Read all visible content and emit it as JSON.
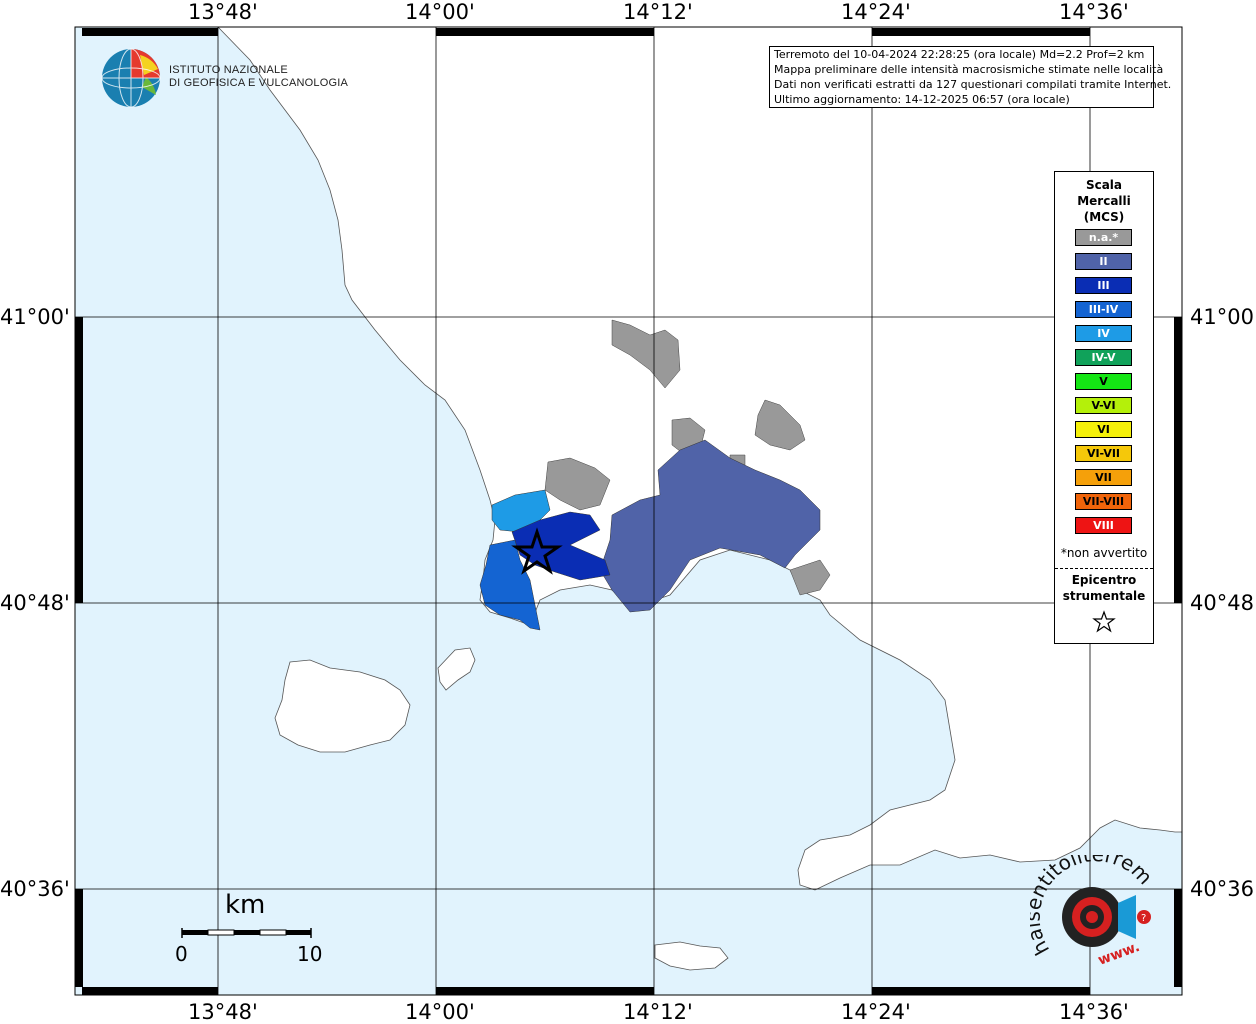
{
  "map": {
    "lon_ticks": [
      "13°48'",
      "14°00'",
      "14°12'",
      "14°24'",
      "14°36'"
    ],
    "lat_ticks": [
      "41°00'",
      "40°48'",
      "40°36'"
    ]
  },
  "logo": {
    "line1": "ISTITUTO NAZIONALE",
    "line2": "DI GEOFISICA E VULCANOLOGIA"
  },
  "info": {
    "line1": "Terremoto del 10-04-2024 22:28:25 (ora locale) Md=2.2 Prof=2 km",
    "line2": "Mappa preliminare delle intensità macrosismiche stimate nelle località",
    "line3": "Dati non verificati estratti da 127 questionari compilati tramite Internet.",
    "line4": "Ultimo aggiornamento: 14-12-2025 06:57 (ora locale)"
  },
  "legend": {
    "title1": "Scala",
    "title2": "Mercalli",
    "title3": "(MCS)",
    "items": [
      {
        "label": "n.a.*",
        "color": "#999999"
      },
      {
        "label": "II",
        "color": "#5063a8"
      },
      {
        "label": "III",
        "color": "#0a2db4"
      },
      {
        "label": "III-IV",
        "color": "#1464d2"
      },
      {
        "label": "IV",
        "color": "#1e9be6"
      },
      {
        "label": "IV-V",
        "color": "#10a25a"
      },
      {
        "label": "V",
        "color": "#14e614"
      },
      {
        "label": "V-VI",
        "color": "#b4f00a"
      },
      {
        "label": "VI",
        "color": "#f5f00a"
      },
      {
        "label": "VI-VII",
        "color": "#f5c80a"
      },
      {
        "label": "VII",
        "color": "#f5a00a"
      },
      {
        "label": "VII-VIII",
        "color": "#f0640a"
      },
      {
        "label": "VIII",
        "color": "#ee1414"
      }
    ],
    "note": "*non avvertito",
    "epi1": "Epicentro",
    "epi2": "strumentale"
  },
  "scale": {
    "unit": "km",
    "start": "0",
    "end": "10"
  },
  "watermark": {
    "text": "haisentitoilterremoto.it",
    "www": "www."
  }
}
